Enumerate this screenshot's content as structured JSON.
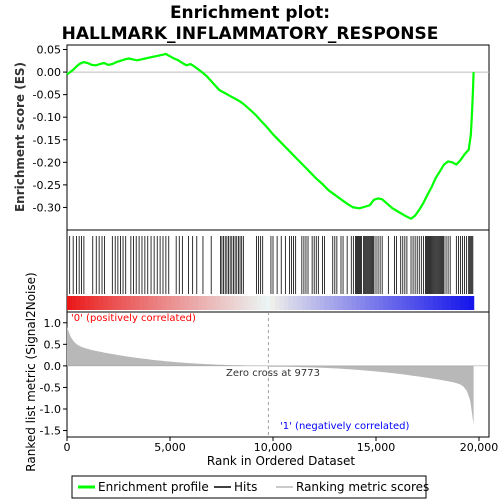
{
  "chart_data": {
    "type": "line",
    "title_line1": "Enrichment plot:",
    "title_line2": "HALLMARK_INFLAMMATORY_RESPONSE",
    "xlabel": "Rank in Ordered Dataset",
    "ylabel_top": "Enrichment score (ES)",
    "ylabel_bottom": "Ranked list metric (Signal2Noise)",
    "xlim": [
      0,
      20000
    ],
    "x_ticks": [
      0,
      5000,
      10000,
      15000,
      20000
    ],
    "x_tick_labels": [
      "0",
      "5,000",
      "10,000",
      "15,000",
      "20,000"
    ],
    "es_ylim": [
      -0.35,
      0.06
    ],
    "es_ticks": [
      0.05,
      0.0,
      -0.05,
      -0.1,
      -0.15,
      -0.2,
      -0.25,
      -0.3
    ],
    "es_tick_labels": [
      "0.05",
      "0.00",
      "-0.05",
      "-0.10",
      "-0.15",
      "-0.20",
      "-0.25",
      "-0.30"
    ],
    "metric_ylim": [
      -1.65,
      1.25
    ],
    "metric_ticks": [
      1.0,
      0.5,
      0.0,
      -0.5,
      -1.0,
      -1.5
    ],
    "metric_tick_labels": [
      "1.0",
      "0.5",
      "0.0",
      "-0.5",
      "-1.0",
      "-1.5"
    ],
    "zero_cross_rank": 9773,
    "zero_cross_label": "Zero cross at 9773",
    "pos_label": "'0' (positively correlated)",
    "neg_label": "'1' (negatively correlated)",
    "colors": {
      "es_line": "#00ff00",
      "pos": "#ff0000",
      "neg": "#0000ff",
      "metric_fill": "#b8b8b8"
    },
    "series": [
      {
        "name": "Enrichment profile",
        "x": [
          0,
          150,
          300,
          450,
          600,
          800,
          1000,
          1200,
          1400,
          1600,
          1800,
          2000,
          2200,
          2400,
          2600,
          2800,
          3000,
          3200,
          3400,
          3600,
          3800,
          4000,
          4200,
          4400,
          4600,
          4800,
          5000,
          5200,
          5400,
          5600,
          5800,
          6000,
          6200,
          6400,
          6600,
          6800,
          7000,
          7200,
          7400,
          7600,
          7800,
          8000,
          8200,
          8400,
          8600,
          8800,
          9000,
          9200,
          9400,
          9600,
          9800,
          10000,
          10300,
          10600,
          10900,
          11200,
          11500,
          11800,
          12100,
          12400,
          12700,
          13000,
          13300,
          13600,
          13900,
          14200,
          14500,
          14700,
          14900,
          15100,
          15300,
          15500,
          15800,
          16100,
          16400,
          16700,
          16900,
          17100,
          17300,
          17500,
          17700,
          17900,
          18100,
          18300,
          18500,
          18700,
          18900,
          19100,
          19300,
          19500,
          19600,
          19650,
          19700,
          19740
        ],
        "y": [
          -0.005,
          0.0,
          0.005,
          0.012,
          0.018,
          0.022,
          0.02,
          0.016,
          0.015,
          0.018,
          0.02,
          0.016,
          0.018,
          0.022,
          0.025,
          0.028,
          0.03,
          0.028,
          0.026,
          0.028,
          0.03,
          0.032,
          0.034,
          0.036,
          0.038,
          0.04,
          0.035,
          0.03,
          0.026,
          0.02,
          0.015,
          0.018,
          0.012,
          0.005,
          -0.002,
          -0.01,
          -0.02,
          -0.03,
          -0.04,
          -0.045,
          -0.05,
          -0.055,
          -0.06,
          -0.065,
          -0.072,
          -0.08,
          -0.088,
          -0.097,
          -0.107,
          -0.117,
          -0.127,
          -0.138,
          -0.152,
          -0.166,
          -0.18,
          -0.194,
          -0.208,
          -0.222,
          -0.236,
          -0.248,
          -0.262,
          -0.272,
          -0.282,
          -0.292,
          -0.3,
          -0.302,
          -0.298,
          -0.295,
          -0.283,
          -0.28,
          -0.282,
          -0.29,
          -0.302,
          -0.31,
          -0.318,
          -0.325,
          -0.318,
          -0.305,
          -0.29,
          -0.272,
          -0.255,
          -0.235,
          -0.22,
          -0.205,
          -0.198,
          -0.2,
          -0.205,
          -0.195,
          -0.182,
          -0.172,
          -0.14,
          -0.1,
          -0.05,
          0.0
        ]
      }
    ],
    "hit_ranks": [
      130,
      300,
      460,
      590,
      700,
      820,
      1250,
      1420,
      1560,
      1700,
      1820,
      2200,
      2340,
      2470,
      2600,
      2720,
      2850,
      3100,
      3230,
      3360,
      3500,
      3640,
      3780,
      3920,
      4080,
      4230,
      4380,
      4520,
      4660,
      4800,
      4940,
      5300,
      5450,
      5600,
      5900,
      6100,
      6300,
      6600,
      7000,
      7450,
      7520,
      7600,
      7680,
      7760,
      7840,
      7920,
      8000,
      8080,
      8160,
      8240,
      8320,
      8400,
      8480,
      8560,
      9200,
      9300,
      9400,
      9500,
      9900,
      10000,
      10200,
      10400,
      10600,
      10800,
      10900,
      11000,
      11100,
      11400,
      11500,
      11600,
      11700,
      11900,
      12000,
      12100,
      12200,
      12400,
      12500,
      12900,
      13000,
      13100,
      13300,
      13400,
      13600,
      13800,
      13900,
      14000,
      14050,
      14100,
      14150,
      14200,
      14250,
      14300,
      14400,
      14450,
      14500,
      14550,
      14600,
      14650,
      14700,
      14750,
      14800,
      14850,
      14900,
      15000,
      15100,
      15200,
      15300,
      15600,
      15900,
      16000,
      16200,
      16300,
      16400,
      16500,
      16700,
      16800,
      16900,
      17000,
      17100,
      17200,
      17300,
      17400,
      17450,
      17500,
      17550,
      17600,
      17650,
      17700,
      17750,
      17800,
      17850,
      17900,
      17950,
      18000,
      18050,
      18100,
      18150,
      18200,
      18250,
      18300,
      18400,
      18500,
      18600,
      18900,
      19000,
      19100,
      19200,
      19300,
      19400,
      19500,
      19550,
      19600,
      19650,
      19700
    ]
  },
  "legend": {
    "es_label": "Enrichment profile",
    "hits_label": "Hits",
    "metric_label": "Ranking metric scores"
  }
}
